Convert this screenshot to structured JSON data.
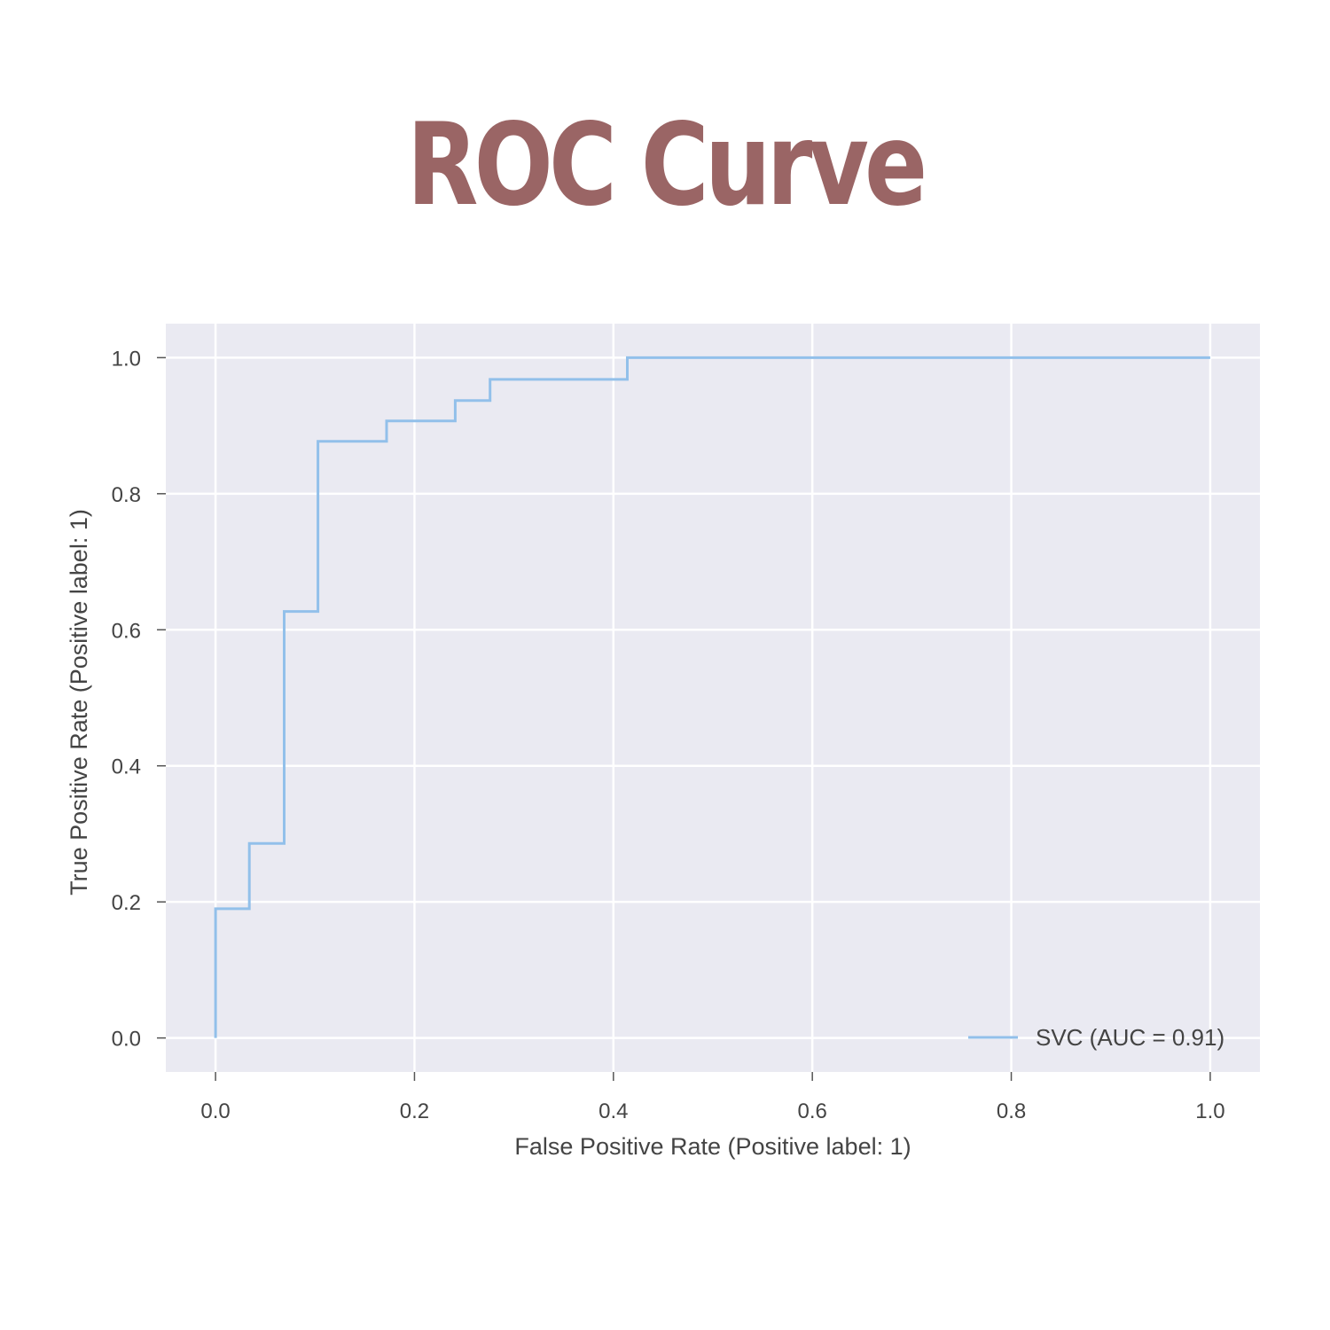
{
  "title": "ROC Curve",
  "chart_data": {
    "type": "line",
    "xlabel": "False Positive Rate (Positive label: 1)",
    "ylabel": "True Positive Rate (Positive label: 1)",
    "xlim": [
      -0.05,
      1.05
    ],
    "ylim": [
      -0.05,
      1.05
    ],
    "xticks": [
      "0.0",
      "0.2",
      "0.4",
      "0.6",
      "0.8",
      "1.0"
    ],
    "yticks": [
      "0.0",
      "0.2",
      "0.4",
      "0.6",
      "0.8",
      "1.0"
    ],
    "grid": true,
    "legend_position": "lower-right",
    "series": [
      {
        "name": "SVC (AUC = 0.91)",
        "color": "#92c0ea",
        "x": [
          0.0,
          0.0,
          0.034,
          0.034,
          0.069,
          0.069,
          0.103,
          0.103,
          0.172,
          0.172,
          0.241,
          0.241,
          0.276,
          0.276,
          0.414,
          0.414,
          1.0
        ],
        "y": [
          0.0,
          0.19,
          0.19,
          0.286,
          0.286,
          0.627,
          0.627,
          0.877,
          0.877,
          0.907,
          0.907,
          0.937,
          0.937,
          0.968,
          0.968,
          1.0,
          1.0
        ]
      }
    ]
  },
  "colors": {
    "title": "#9a6565",
    "plot_background": "#eaeaf2",
    "grid": "#ffffff",
    "text": "#444444"
  }
}
